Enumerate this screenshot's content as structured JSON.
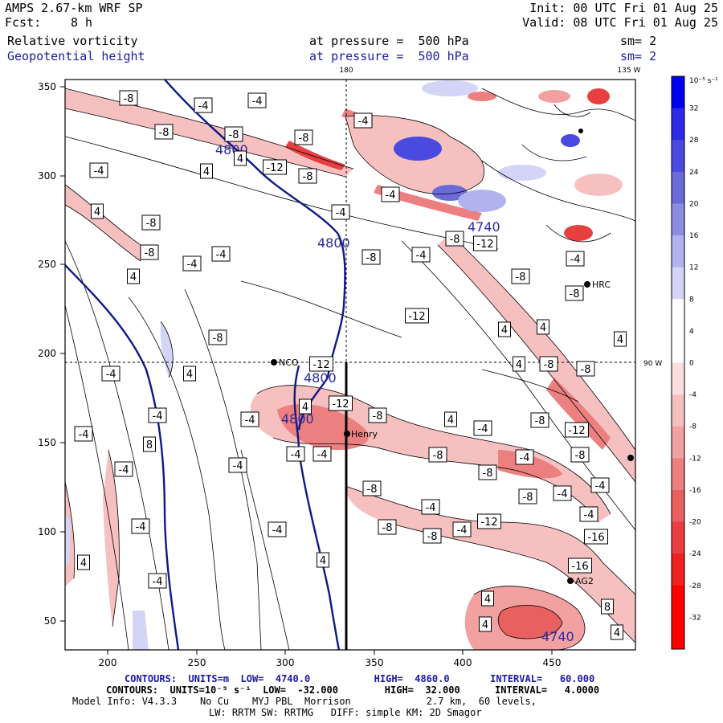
{
  "header": {
    "model": "AMPS 2.67-km WRF SP",
    "init": "Init: 00 UTC Fri 01 Aug 25",
    "fcst_label": "Fcst:",
    "fcst_value": "8 h",
    "valid": "Valid: 08 UTC Fri 01 Aug 25",
    "field1": "Relative vorticity",
    "field1_level": "at pressure =  500 hPa",
    "field1_sm": "sm= 2",
    "field2": "Geopotential height",
    "field2_level": "at pressure =  500 hPa",
    "field2_sm": "sm= 2",
    "lon_top_left": "180",
    "lon_top_right": "135 W",
    "lon_right": "90 W"
  },
  "axes": {
    "x_ticks": [
      "200",
      "250",
      "300",
      "350",
      "400",
      "450"
    ],
    "y_ticks": [
      "350",
      "300",
      "250",
      "200",
      "150",
      "100",
      "50"
    ]
  },
  "stations": [
    {
      "name": "HRC"
    },
    {
      "name": "NCO"
    },
    {
      "name": "Henry"
    },
    {
      "name": "AG2"
    }
  ],
  "height_labels": [
    "4800",
    "4800",
    "4800",
    "4800",
    "4740",
    "4740"
  ],
  "vort_labels": [
    "-8",
    "-4",
    "-4",
    "-8",
    "-8",
    "-4",
    "-8",
    "4",
    "-4",
    "4",
    "-12",
    "-8",
    "-4",
    "4",
    "-4",
    "-8",
    "-8",
    "-4",
    "-4",
    "4",
    "-8",
    "-8",
    "-12",
    "-4",
    "-4",
    "-8",
    "-8",
    "-12",
    "4",
    "4",
    "4",
    "4",
    "-8",
    "-8",
    "-8",
    "-12",
    "-4",
    "4",
    "4",
    "-12",
    "-8",
    "4",
    "-4",
    "-8",
    "-12",
    "-4",
    "-4",
    "-4",
    "-4",
    "-8",
    "-4",
    "-8",
    "-8",
    "-4",
    "-4",
    "-8",
    "-4",
    "-8",
    "-4",
    "-4",
    "-4",
    "-8",
    "-8",
    "-4",
    "-12",
    "-16",
    "-16",
    "4",
    "4",
    "4",
    "8",
    "4",
    "8",
    "-4",
    "-4",
    "-4",
    "4",
    "-4"
  ],
  "colorbar": {
    "unit": "10⁻⁵ s⁻¹",
    "labels": [
      "32",
      "28",
      "24",
      "20",
      "16",
      "12",
      "8",
      "4",
      "0",
      "-4",
      "-8",
      "-12",
      "-16",
      "-20",
      "-24",
      "-28",
      "-32"
    ],
    "colors": [
      "#0000ee",
      "#2a2ae8",
      "#4a4ae0",
      "#6a6ad8",
      "#8c8ce2",
      "#b2b2ee",
      "#d4d4f6",
      "#ffffff",
      "#ffffff",
      "#fbdede",
      "#f7c0c0",
      "#f2a0a0",
      "#ec8080",
      "#e86060",
      "#e84040",
      "#ee2020",
      "#ff0000"
    ]
  },
  "footer": {
    "line1": "CONTOURS:  UNITS=m  LOW=  4740.0           HIGH=  4860.0       INTERVAL=   60.000",
    "line2": "CONTOURS:  UNITS=10⁻⁵ s⁻¹  LOW=  -32.000        HIGH=  32.000      INTERVAL=   4.0000",
    "line3": "Model Info: V4.3.3    No Cu    MYJ PBL  Morrison             2.7 km,  60 levels,",
    "line4": "LW: RRTM SW: RRTMG   DIFF: simple KM: 2D Smagor"
  }
}
